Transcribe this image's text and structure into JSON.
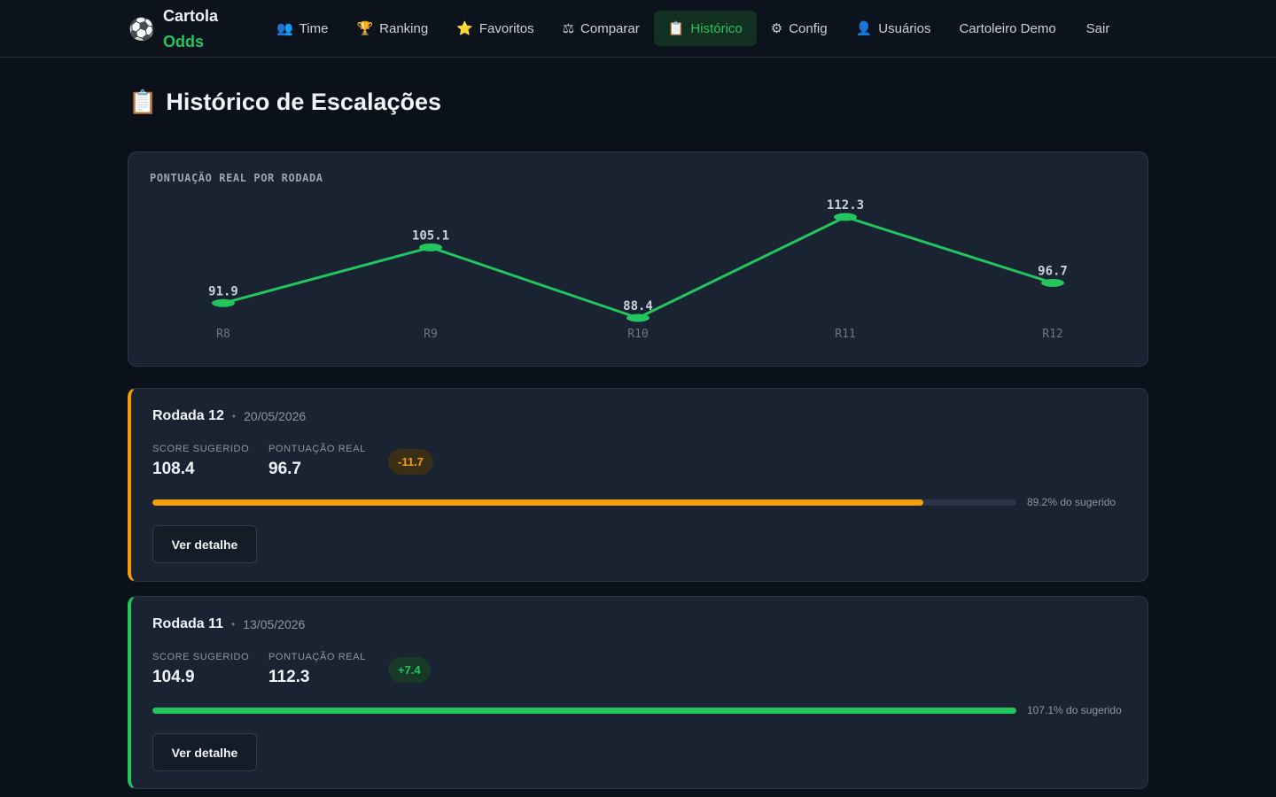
{
  "brand": {
    "line1": "Cartola",
    "line2": "Odds",
    "icon": "soccer-ball-icon"
  },
  "nav": {
    "items": [
      {
        "icon": "👥",
        "icon_name": "users-icon",
        "label": "Time",
        "active": false
      },
      {
        "icon": "🏆",
        "icon_name": "trophy-icon",
        "label": "Ranking",
        "active": false
      },
      {
        "icon": "⭐",
        "icon_name": "star-icon",
        "label": "Favoritos",
        "active": false
      },
      {
        "icon": "⚖",
        "icon_name": "scale-icon",
        "label": "Comparar",
        "active": false
      },
      {
        "icon": "📋",
        "icon_name": "clipboard-icon",
        "label": "Histórico",
        "active": true
      },
      {
        "icon": "⚙",
        "icon_name": "gear-icon",
        "label": "Config",
        "active": false
      },
      {
        "icon": "👤",
        "icon_name": "user-icon",
        "label": "Usuários",
        "active": false
      }
    ],
    "user_name": "Cartoleiro Demo",
    "logout_label": "Sair"
  },
  "page": {
    "title": "Histórico de Escalações",
    "title_icon": "📋"
  },
  "chart_data": {
    "type": "line",
    "title": "PONTUAÇÃO REAL POR RODADA",
    "categories": [
      "R8",
      "R9",
      "R10",
      "R11",
      "R12"
    ],
    "series": [
      {
        "values": [
          91.9,
          105.1,
          88.4,
          112.3,
          96.7
        ]
      }
    ],
    "data_labels": [
      "91.9",
      "105.1",
      "88.4",
      "112.3",
      "96.7"
    ],
    "color": "#22c55e",
    "grid": false
  },
  "rounds": [
    {
      "name": "Rodada 12",
      "date": "20/05/2026",
      "suggested_label": "SCORE SUGERIDO",
      "suggested_value": "108.4",
      "real_label": "PONTUAÇÃO REAL",
      "real_value": "96.7",
      "delta": "-11.7",
      "progress_percent": 89.2,
      "progress_text": "89.2% do sugerido",
      "accent": "#f59e0b",
      "pill_bg": "#3a2e17",
      "button_label": "Ver detalhe"
    },
    {
      "name": "Rodada 11",
      "date": "13/05/2026",
      "suggested_label": "SCORE SUGERIDO",
      "suggested_value": "104.9",
      "real_label": "PONTUAÇÃO REAL",
      "real_value": "112.3",
      "delta": "+7.4",
      "progress_percent": 100,
      "progress_text": "107.1% do sugerido",
      "accent": "#22c55e",
      "pill_bg": "#163a27",
      "button_label": "Ver detalhe"
    }
  ]
}
